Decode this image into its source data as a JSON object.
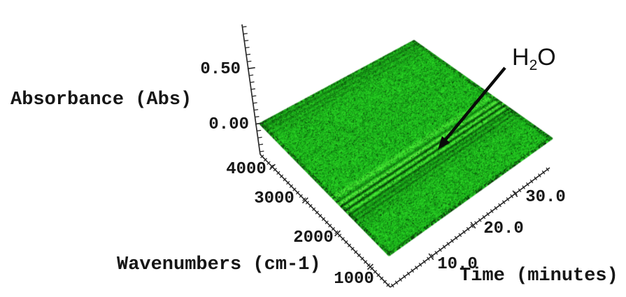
{
  "chart_data": {
    "type": "heatmap",
    "projection": "3d-perspective-surface",
    "title": "",
    "description": "Time-resolved FTIR spectra shown as a flat noisy green 3D surface of absorbance vs wavenumber vs time; dark streaks parallel to the time axis mark water-vapor absorption bands.",
    "axes": {
      "z": {
        "label": "Absorbance (Abs)",
        "tick_labels": [
          "0.00",
          "0.50"
        ],
        "tick_values": [
          0.0,
          0.5
        ],
        "minor_tick_step": 0.0625,
        "shown_range": [
          -0.27,
          0.87
        ]
      },
      "x": {
        "label": "Wavenumbers (cm-1)",
        "tick_labels": [
          "4000",
          "3000",
          "2000",
          "1000"
        ],
        "tick_values": [
          4000,
          3000,
          2000,
          1000
        ],
        "minor_tick_step": 100,
        "shown_range": [
          4350,
          350
        ],
        "orientation": "lower-left edge, runs down-right"
      },
      "y": {
        "label": "Time (minutes)",
        "tick_labels": [
          "10.0",
          "20.0",
          "30.0"
        ],
        "tick_values": [
          10.0,
          20.0,
          30.0
        ],
        "minor_tick_step": 1,
        "shown_range": [
          0,
          36
        ],
        "orientation": "lower-right edge, runs up-right"
      }
    },
    "surface": {
      "kind": "FTIR absorbance plane near 0 Abs at all times",
      "base_color": "#23b42c",
      "dark_speck_color": "#0e7a1a",
      "bright_streak_color": "#55d33f",
      "bands": [
        {
          "wavenumber": 3920,
          "u": 0.03,
          "w": 0.009,
          "m": 0.72
        },
        {
          "wavenumber": 3820,
          "u": 0.058,
          "w": 0.008,
          "m": 0.78
        },
        {
          "wavenumber": 3720,
          "u": 0.085,
          "w": 0.007,
          "m": 0.84
        },
        {
          "wavenumber": 3620,
          "u": 0.11,
          "w": 0.006,
          "m": 0.9
        },
        {
          "wavenumber": 2900,
          "u": 0.3,
          "w": 0.006,
          "m": 0.94
        },
        {
          "wavenumber": 2750,
          "u": 0.35,
          "w": 0.006,
          "m": 0.94
        },
        {
          "wavenumber": 2100,
          "u": 0.57,
          "w": 0.014,
          "m": 1.22
        },
        {
          "wavenumber": 2020,
          "u": 0.598,
          "w": 0.007,
          "m": 0.66
        },
        {
          "wavenumber": 1960,
          "u": 0.615,
          "w": 0.012,
          "m": 1.38
        },
        {
          "wavenumber": 1900,
          "u": 0.632,
          "w": 0.007,
          "m": 0.38
        },
        {
          "wavenumber": 1840,
          "u": 0.648,
          "w": 0.011,
          "m": 1.36
        },
        {
          "wavenumber": 1780,
          "u": 0.663,
          "w": 0.007,
          "m": 0.36
        },
        {
          "wavenumber": 1720,
          "u": 0.678,
          "w": 0.01,
          "m": 1.28
        },
        {
          "wavenumber": 1660,
          "u": 0.695,
          "w": 0.006,
          "m": 0.5
        },
        {
          "wavenumber": 1590,
          "u": 0.718,
          "w": 0.007,
          "m": 0.7
        },
        {
          "wavenumber": 1520,
          "u": 0.742,
          "w": 0.006,
          "m": 0.64
        },
        {
          "wavenumber": 1440,
          "u": 0.768,
          "w": 0.005,
          "m": 0.82
        },
        {
          "wavenumber": 1360,
          "u": 0.79,
          "w": 0.005,
          "m": 0.88
        }
      ]
    },
    "annotation": {
      "text": "H2O",
      "formula_main": "H",
      "formula_sub": "2",
      "formula_end": "O",
      "arrow": true,
      "points_to": "dark water absorption streaks on the surface"
    }
  }
}
